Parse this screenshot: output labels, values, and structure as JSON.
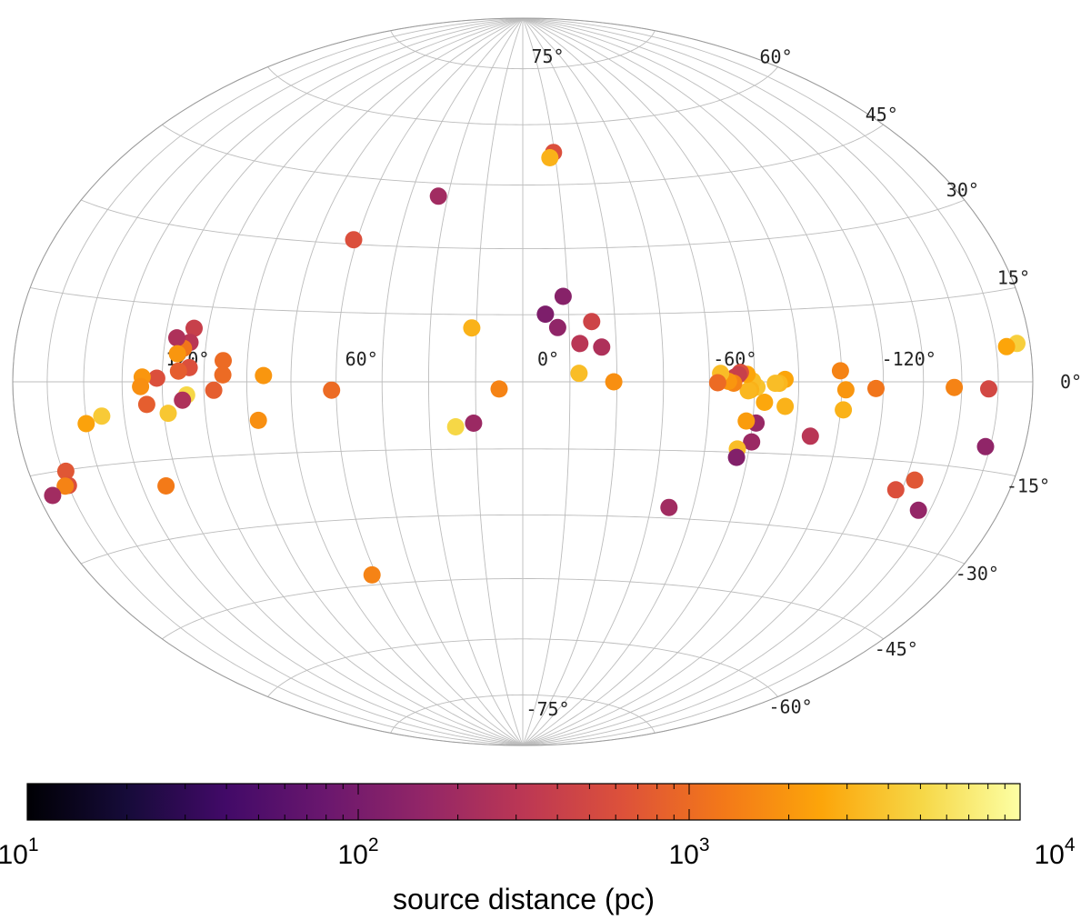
{
  "chart_data": {
    "type": "scatter",
    "projection": "hammer-aitoff",
    "coordinate_system": "galactic",
    "grid": true,
    "lon_tick_labels": [
      "-120°",
      "-60°",
      "0°",
      "60°",
      "120°"
    ],
    "lat_tick_labels": [
      "75°",
      "60°",
      "45°",
      "30°",
      "15°",
      "0°",
      "-15°",
      "-30°",
      "-45°",
      "-60°",
      "-75°"
    ],
    "colorbar": {
      "label": "source distance (pc)",
      "scale": "log",
      "range": [
        10,
        10000
      ],
      "colormap": "inferno",
      "tick_labels": [
        {
          "base": "10",
          "exp": "1"
        },
        {
          "base": "10",
          "exp": "2"
        },
        {
          "base": "10",
          "exp": "3"
        },
        {
          "base": "10",
          "exp": "4"
        }
      ]
    },
    "points": [
      {
        "l": -174.2,
        "b": 6.2,
        "distance": 4500
      },
      {
        "l": -169.5,
        "b": 5.8,
        "distance": 2500
      },
      {
        "l": -161.0,
        "b": -1.2,
        "distance": 500
      },
      {
        "l": -163.0,
        "b": -11.0,
        "distance": 150
      },
      {
        "l": -147.0,
        "b": -1.0,
        "distance": 1500
      },
      {
        "l": -138.5,
        "b": -18.2,
        "distance": 700
      },
      {
        "l": -132.6,
        "b": -20.4,
        "distance": 600
      },
      {
        "l": -145.3,
        "b": -23.5,
        "distance": 160
      },
      {
        "l": -117.3,
        "b": -1.3,
        "distance": 1200
      },
      {
        "l": -106.5,
        "b": -1.6,
        "distance": 2000
      },
      {
        "l": -106.0,
        "b": -5.6,
        "distance": 3000
      },
      {
        "l": -104.6,
        "b": 2.2,
        "distance": 1500
      },
      {
        "l": -95.5,
        "b": -11.1,
        "distance": 300
      },
      {
        "l": -85.6,
        "b": -5.1,
        "distance": 3000
      },
      {
        "l": -85.3,
        "b": 0.5,
        "distance": 2500
      },
      {
        "l": -83.3,
        "b": -0.3,
        "distance": 3200
      },
      {
        "l": -82.0,
        "b": -0.3,
        "distance": 3500
      },
      {
        "l": -78.5,
        "b": -4.3,
        "distance": 2600
      },
      {
        "l": -75.8,
        "b": -1.1,
        "distance": 3800
      },
      {
        "l": -74.3,
        "b": 0.2,
        "distance": 3500
      },
      {
        "l": -73.7,
        "b": -1.7,
        "distance": 3000
      },
      {
        "l": -72.9,
        "b": -1.9,
        "distance": 3200
      },
      {
        "l": -72.5,
        "b": 1.6,
        "distance": 2500
      },
      {
        "l": -70.3,
        "b": 2.0,
        "distance": 600
      },
      {
        "l": -69.6,
        "b": 1.5,
        "distance": 400
      },
      {
        "l": -68.4,
        "b": 1.0,
        "distance": 400
      },
      {
        "l": -68.0,
        "b": -0.3,
        "distance": 1500
      },
      {
        "l": -66.3,
        "b": 0.1,
        "distance": 2000
      },
      {
        "l": -63.7,
        "b": 1.8,
        "distance": 3500
      },
      {
        "l": -62.7,
        "b": -0.2,
        "distance": 1000
      },
      {
        "l": -76.2,
        "b": -8.7,
        "distance": 170
      },
      {
        "l": -72.8,
        "b": -8.3,
        "distance": 2200
      },
      {
        "l": -75.5,
        "b": -12.7,
        "distance": 180
      },
      {
        "l": -71.0,
        "b": -14.3,
        "distance": 3500
      },
      {
        "l": -71.2,
        "b": -16.1,
        "distance": 120
      },
      {
        "l": -51.4,
        "b": -27.6,
        "distance": 200
      },
      {
        "l": -29.0,
        "b": 0.0,
        "distance": 1800
      },
      {
        "l": -25.3,
        "b": 7.7,
        "distance": 250
      },
      {
        "l": -22.4,
        "b": 13.4,
        "distance": 450
      },
      {
        "l": -18.3,
        "b": 8.5,
        "distance": 300
      },
      {
        "l": -17.9,
        "b": 1.9,
        "distance": 3500
      },
      {
        "l": -11.3,
        "b": 12.1,
        "distance": 150
      },
      {
        "l": -13.4,
        "b": 19.1,
        "distance": 130
      },
      {
        "l": -7.4,
        "b": 15.1,
        "distance": 110
      },
      {
        "l": -14.5,
        "b": 52.9,
        "distance": 600
      },
      {
        "l": -12.5,
        "b": 51.6,
        "distance": 3000
      },
      {
        "l": 7.5,
        "b": -1.6,
        "distance": 1500
      },
      {
        "l": 16.5,
        "b": 12.0,
        "distance": 3000
      },
      {
        "l": 15.8,
        "b": -9.2,
        "distance": 180
      },
      {
        "l": 21.6,
        "b": -10.0,
        "distance": 5000
      },
      {
        "l": 33.8,
        "b": 41.9,
        "distance": 200
      },
      {
        "l": 61.3,
        "b": 31.0,
        "distance": 600
      },
      {
        "l": 61.5,
        "b": -1.8,
        "distance": 1000
      },
      {
        "l": 84.3,
        "b": 1.3,
        "distance": 2000
      },
      {
        "l": 86.7,
        "b": -8.0,
        "distance": 1800
      },
      {
        "l": 98.4,
        "b": 4.3,
        "distance": 1000
      },
      {
        "l": 98.3,
        "b": 1.4,
        "distance": 1000
      },
      {
        "l": 101.5,
        "b": -1.7,
        "distance": 800
      },
      {
        "l": 110.1,
        "b": 10.6,
        "distance": 400
      },
      {
        "l": 110.8,
        "b": 7.8,
        "distance": 300
      },
      {
        "l": 112.9,
        "b": 6.6,
        "distance": 1200
      },
      {
        "l": 115.8,
        "b": 8.6,
        "distance": 250
      },
      {
        "l": 114.9,
        "b": 5.5,
        "distance": 2000
      },
      {
        "l": 110.3,
        "b": 2.8,
        "distance": 600
      },
      {
        "l": 114.1,
        "b": 2.1,
        "distance": 800
      },
      {
        "l": 111.2,
        "b": -2.6,
        "distance": 5000
      },
      {
        "l": 112.8,
        "b": -3.6,
        "distance": 250
      },
      {
        "l": 118.4,
        "b": -6.1,
        "distance": 4000
      },
      {
        "l": 122.0,
        "b": 0.7,
        "distance": 600
      },
      {
        "l": 127.4,
        "b": 0.9,
        "distance": 2000
      },
      {
        "l": 128.0,
        "b": -0.9,
        "distance": 1800
      },
      {
        "l": 126.0,
        "b": -4.3,
        "distance": 800
      },
      {
        "l": 143.7,
        "b": -6.2,
        "distance": 4200
      },
      {
        "l": 150.3,
        "b": -7.4,
        "distance": 2400
      },
      {
        "l": 125.7,
        "b": -20.0,
        "distance": 1300
      },
      {
        "l": 163.7,
        "b": -15.2,
        "distance": 700
      },
      {
        "l": 164.9,
        "b": -17.6,
        "distance": 600
      },
      {
        "l": 166.4,
        "b": -17.6,
        "distance": 1500
      },
      {
        "l": 173.6,
        "b": -18.7,
        "distance": 200
      },
      {
        "l": 61.8,
        "b": -42.7,
        "distance": 1500
      }
    ]
  }
}
